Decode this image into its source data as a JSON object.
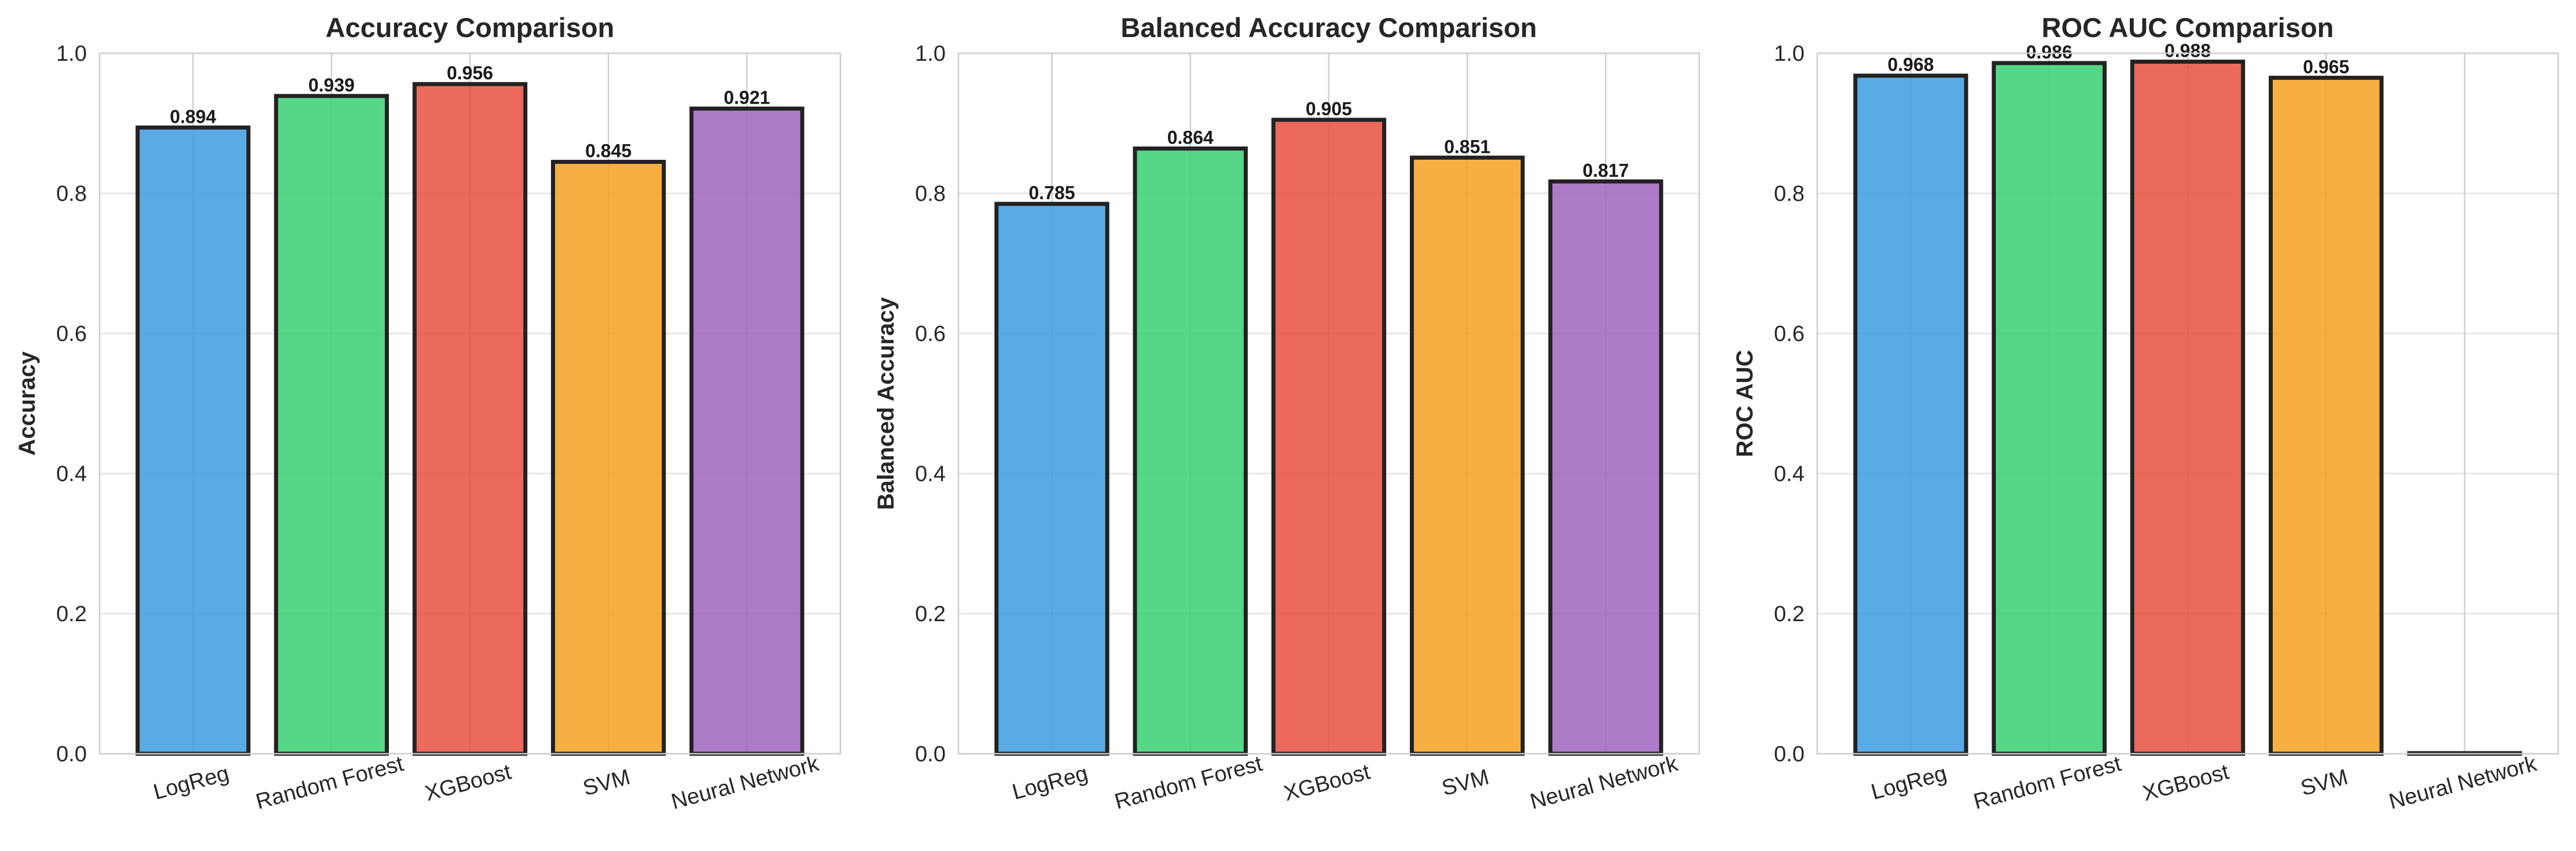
{
  "chart_data": [
    {
      "type": "bar",
      "title": "Accuracy Comparison",
      "xlabel": "",
      "ylabel": "Accuracy",
      "categories": [
        "LogReg",
        "Random Forest",
        "XGBoost",
        "SVM",
        "Neural Network"
      ],
      "values": [
        0.894,
        0.939,
        0.956,
        0.845,
        0.921
      ],
      "data_labels": [
        "0.894",
        "0.939",
        "0.956",
        "0.845",
        "0.921"
      ],
      "ylim": [
        0,
        1.0
      ],
      "yticks": [
        "0.0",
        "0.2",
        "0.4",
        "0.6",
        "0.8",
        "1.0"
      ],
      "grid": true,
      "xtick_rotation": "15deg"
    },
    {
      "type": "bar",
      "title": "Balanced Accuracy Comparison",
      "xlabel": "",
      "ylabel": "Balanced Accuracy",
      "categories": [
        "LogReg",
        "Random Forest",
        "XGBoost",
        "SVM",
        "Neural Network"
      ],
      "values": [
        0.785,
        0.864,
        0.905,
        0.851,
        0.817
      ],
      "data_labels": [
        "0.785",
        "0.864",
        "0.905",
        "0.851",
        "0.817"
      ],
      "ylim": [
        0,
        1.0
      ],
      "yticks": [
        "0.0",
        "0.2",
        "0.4",
        "0.6",
        "0.8",
        "1.0"
      ],
      "grid": true,
      "xtick_rotation": "15deg"
    },
    {
      "type": "bar",
      "title": "ROC AUC Comparison",
      "xlabel": "",
      "ylabel": "ROC AUC",
      "categories": [
        "LogReg",
        "Random Forest",
        "XGBoost",
        "SVM",
        "Neural Network"
      ],
      "values": [
        0.968,
        0.986,
        0.988,
        0.965,
        0
      ],
      "data_labels": [
        "0.968",
        "0.986",
        "0.988",
        "0.965",
        ""
      ],
      "ylim": [
        0,
        1.0
      ],
      "yticks": [
        "0.0",
        "0.2",
        "0.4",
        "0.6",
        "0.8",
        "1.0"
      ],
      "grid": true,
      "xtick_rotation": "15deg"
    }
  ],
  "colors": {
    "LogReg": "#3c9ce0",
    "Random Forest": "#37d072",
    "XGBoost": "#e8503f",
    "SVM": "#f4a11e",
    "Neural Network": "#a064c0",
    "bar_edge": "#222222",
    "grid": "#e3e3e3",
    "frame": "#cccccc"
  }
}
